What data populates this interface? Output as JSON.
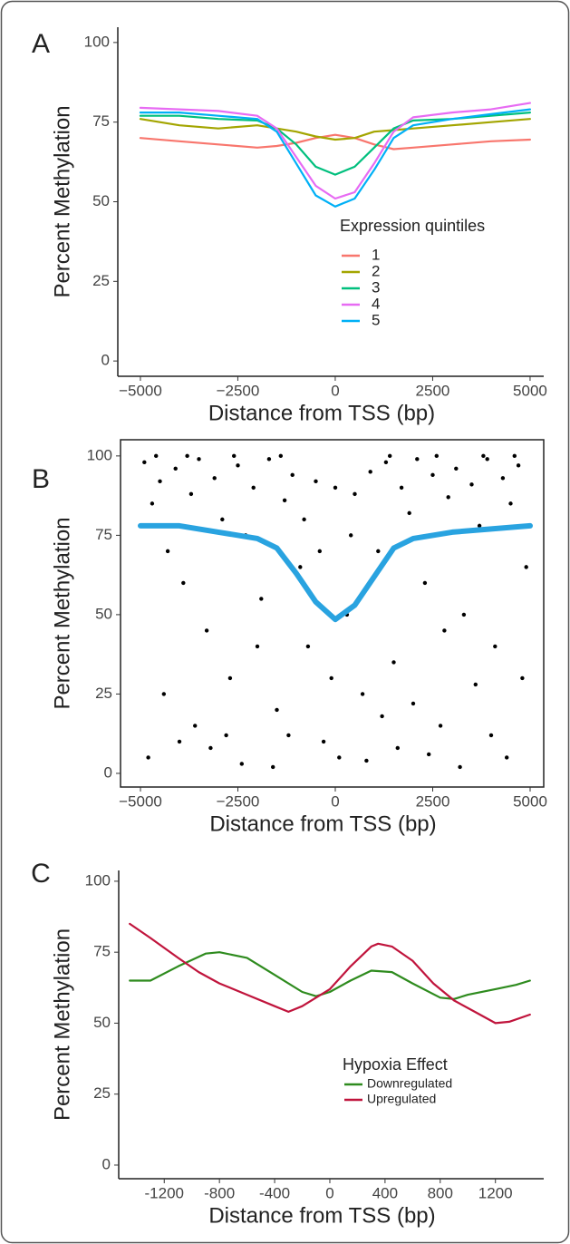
{
  "chart_data": [
    {
      "type": "line",
      "panel_label": "A",
      "x_label": "Distance from TSS (bp)",
      "y_label": "Percent Methylation",
      "xlim": [
        -5580,
        5350
      ],
      "ylim": [
        -4.8,
        104.8
      ],
      "xticks": [
        {
          "value": -5000,
          "label": "−5000"
        },
        {
          "value": -2500,
          "label": "−2500"
        },
        0,
        2500,
        5000
      ],
      "yticks": [
        0,
        25,
        50,
        75,
        100
      ],
      "legend_title": "Expression quintiles",
      "x": [
        -5000,
        -4000,
        -3000,
        -2000,
        -1500,
        -1000,
        -500,
        0,
        500,
        1000,
        1500,
        2000,
        3000,
        4000,
        5000
      ],
      "series": [
        {
          "name": "1",
          "color": "#f8766d",
          "values": [
            70,
            69,
            68,
            67,
            67.5,
            68.5,
            70,
            71,
            70,
            68,
            66.5,
            67,
            68,
            69,
            69.5
          ]
        },
        {
          "name": "2",
          "color": "#a3a500",
          "values": [
            76,
            74,
            73,
            74,
            73,
            72,
            70.5,
            69.5,
            70,
            72,
            72.5,
            73,
            74,
            75,
            76
          ]
        },
        {
          "name": "3",
          "color": "#00bf7d",
          "values": [
            77,
            77,
            76,
            75.5,
            73,
            68,
            61,
            58.5,
            61,
            67,
            73,
            75.5,
            76,
            77,
            78
          ]
        },
        {
          "name": "4",
          "color": "#e76bf3",
          "values": [
            79.5,
            79,
            78.5,
            77,
            73,
            64,
            55,
            51,
            53,
            62,
            72,
            76.5,
            78,
            79,
            81
          ]
        },
        {
          "name": "5",
          "color": "#00b0f6",
          "values": [
            78,
            78,
            77,
            76,
            72,
            62,
            52,
            48.5,
            51,
            60,
            70,
            74,
            76,
            77.5,
            79
          ]
        }
      ]
    },
    {
      "type": "scatter",
      "panel_label": "B",
      "x_label": "Distance from TSS (bp)",
      "y_label": "Percent Methylation",
      "xlim": [
        -5512,
        5349
      ],
      "ylim": [
        -4.3,
        105.1
      ],
      "xticks": [
        {
          "value": -5000,
          "label": "−5000"
        },
        {
          "value": -2500,
          "label": "−2500"
        },
        0,
        2500,
        5000
      ],
      "yticks": [
        0,
        25,
        50,
        75,
        100
      ],
      "scatter": {
        "color": "#000000",
        "x": [
          -4900,
          -4700,
          -4500,
          -4300,
          -4100,
          -3900,
          -3700,
          -3500,
          -3300,
          -3100,
          -2900,
          -2700,
          -2500,
          -2300,
          -2100,
          -1900,
          -1700,
          -1500,
          -1300,
          -1100,
          -900,
          -700,
          -500,
          -300,
          -100,
          100,
          300,
          500,
          700,
          900,
          1100,
          1300,
          1500,
          1700,
          1900,
          2100,
          2300,
          2500,
          2700,
          2900,
          3100,
          3300,
          3500,
          3700,
          3900,
          4100,
          4300,
          4500,
          4700,
          4900,
          -4800,
          -4400,
          -4000,
          -3600,
          -3200,
          -2800,
          -2400,
          -2000,
          -1600,
          -1200,
          -800,
          -400,
          0,
          400,
          800,
          1200,
          1600,
          2000,
          2400,
          2800,
          3200,
          3600,
          4000,
          4400,
          4800,
          -4600,
          -3800,
          -2600,
          -1400,
          1400,
          2600,
          3800,
          4600
        ],
        "y": [
          98,
          85,
          92,
          70,
          96,
          60,
          88,
          99,
          45,
          93,
          80,
          30,
          97,
          75,
          90,
          55,
          99,
          20,
          86,
          94,
          65,
          40,
          92,
          10,
          30,
          5,
          50,
          88,
          25,
          95,
          70,
          98,
          35,
          90,
          82,
          99,
          60,
          94,
          15,
          87,
          96,
          50,
          91,
          78,
          99,
          40,
          93,
          85,
          97,
          65,
          5,
          25,
          10,
          15,
          8,
          12,
          3,
          40,
          2,
          12,
          80,
          70,
          90,
          75,
          4,
          18,
          8,
          22,
          6,
          45,
          2,
          28,
          12,
          5,
          30,
          100,
          100,
          100,
          100,
          100,
          100,
          100,
          100
        ]
      },
      "x": [
        -5000,
        -4000,
        -3000,
        -2000,
        -1500,
        -1000,
        -500,
        0,
        500,
        1000,
        1500,
        2000,
        3000,
        4000,
        5000
      ],
      "series": [
        {
          "color": "#29a3e0",
          "values": [
            78,
            78,
            76,
            74,
            71,
            63,
            54,
            48.5,
            53,
            62,
            71,
            74,
            76,
            77,
            78
          ]
        }
      ]
    },
    {
      "type": "line",
      "panel_label": "C",
      "x_label": "Distance from TSS (bp)",
      "y_label": "Percent Methylation",
      "xlim": [
        -1530,
        1550
      ],
      "ylim": [
        -4.8,
        103.8
      ],
      "xticks": [
        -1200,
        -800,
        -400,
        0,
        400,
        800,
        1200
      ],
      "yticks": [
        0,
        25,
        50,
        75,
        100
      ],
      "legend_title": "Hypoxia Effect",
      "series": [
        {
          "name": "Downregulated",
          "color": "#2e8b1e",
          "x": [
            -1450,
            -1300,
            -1100,
            -900,
            -800,
            -600,
            -400,
            -200,
            -100,
            0,
            150,
            300,
            450,
            600,
            800,
            900,
            1000,
            1200,
            1350,
            1450
          ],
          "values": [
            65,
            65,
            70,
            74.5,
            75,
            73,
            67,
            61,
            59.5,
            61,
            65,
            68.5,
            68,
            64,
            59,
            58.5,
            60,
            62,
            63.5,
            65
          ]
        },
        {
          "name": "Upregulated",
          "color": "#c0143c",
          "x": [
            -1450,
            -1300,
            -1100,
            -950,
            -800,
            -600,
            -400,
            -300,
            -200,
            0,
            150,
            300,
            350,
            450,
            600,
            750,
            900,
            1050,
            1200,
            1300,
            1450
          ],
          "values": [
            85,
            80,
            73,
            68,
            64,
            60,
            56,
            54,
            56,
            62,
            70,
            77,
            78,
            77,
            72,
            64,
            58,
            54,
            50,
            50.5,
            53
          ]
        }
      ]
    }
  ]
}
